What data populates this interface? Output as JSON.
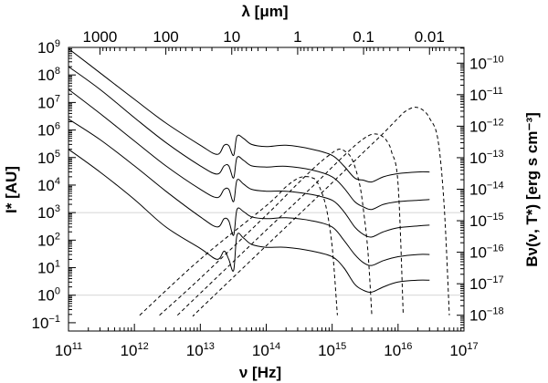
{
  "chart_data": {
    "type": "line",
    "xlabel": "ν [Hz]",
    "ylabel_left": "I* [AU]",
    "ylabel_right": "Bν(ν, T*) [erg s cm⁻³]",
    "top_xlabel": "λ [μm]",
    "x_scale": "log",
    "y_scale": "log",
    "xlim": [
      100000000000.0,
      1e+17
    ],
    "ylim_left": [
      0.05,
      1000000000.0
    ],
    "ylim_right": [
      3.16e-19,
      3.16e-10
    ],
    "grid": "horizontal lines at I* = 1 and I* = 1000",
    "x_ticks": [
      {
        "base": "10",
        "exp": "11",
        "value": 100000000000.0
      },
      {
        "base": "10",
        "exp": "12",
        "value": 1000000000000.0
      },
      {
        "base": "10",
        "exp": "13",
        "value": 10000000000000.0
      },
      {
        "base": "10",
        "exp": "14",
        "value": 100000000000000.0
      },
      {
        "base": "10",
        "exp": "15",
        "value": 1000000000000000.0
      },
      {
        "base": "10",
        "exp": "16",
        "value": 1e+16
      },
      {
        "base": "10",
        "exp": "17",
        "value": 1e+17
      }
    ],
    "top_ticks": [
      {
        "label": "1000",
        "lambda_um": 1000
      },
      {
        "label": "100",
        "lambda_um": 100
      },
      {
        "label": "10",
        "lambda_um": 10
      },
      {
        "label": "1",
        "lambda_um": 1
      },
      {
        "label": "0.1",
        "lambda_um": 0.1
      },
      {
        "label": "0.01",
        "lambda_um": 0.01
      }
    ],
    "left_ticks": [
      {
        "base": "10",
        "exp": "9",
        "value": 1000000000.0
      },
      {
        "base": "10",
        "exp": "8",
        "value": 100000000.0
      },
      {
        "base": "10",
        "exp": "7",
        "value": 10000000.0
      },
      {
        "base": "10",
        "exp": "6",
        "value": 1000000.0
      },
      {
        "base": "10",
        "exp": "5",
        "value": 100000.0
      },
      {
        "base": "10",
        "exp": "4",
        "value": 10000.0
      },
      {
        "base": "10",
        "exp": "3",
        "value": 1000.0
      },
      {
        "base": "10",
        "exp": "2",
        "value": 100.0
      },
      {
        "base": "10",
        "exp": "1",
        "value": 10.0
      },
      {
        "base": "10",
        "exp": "0",
        "value": 1.0
      },
      {
        "base": "10",
        "exp": "−1",
        "value": 0.1
      }
    ],
    "right_ticks": [
      {
        "base": "10",
        "exp": "−10",
        "value": 1e-10
      },
      {
        "base": "10",
        "exp": "−11",
        "value": 1e-11
      },
      {
        "base": "10",
        "exp": "−12",
        "value": 1e-12
      },
      {
        "base": "10",
        "exp": "−13",
        "value": 1e-13
      },
      {
        "base": "10",
        "exp": "−14",
        "value": 1e-14
      },
      {
        "base": "10",
        "exp": "−15",
        "value": 1e-15
      },
      {
        "base": "10",
        "exp": "−16",
        "value": 1e-16
      },
      {
        "base": "10",
        "exp": "−17",
        "value": 1e-17
      },
      {
        "base": "10",
        "exp": "−18",
        "value": 1e-18
      }
    ],
    "series": [
      {
        "style": "solid",
        "axis": "left",
        "x": [
          100000000000.0,
          300000000000.0,
          1000000000000.0,
          3000000000000.0,
          10000000000000.0,
          18000000000000.0,
          23000000000000.0,
          27000000000000.0,
          32000000000000.0,
          36000000000000.0,
          45000000000000.0,
          60000000000000.0,
          100000000000000.0,
          200000000000000.0,
          500000000000000.0,
          1000000000000000.0,
          1500000000000000.0,
          2200000000000000.0,
          3000000000000000.0,
          4000000000000000.0,
          6000000000000000.0,
          1e+16,
          2e+16,
          3e+16
        ],
        "y": [
          900000000.0,
          120000000.0,
          13000000.0,
          1800000.0,
          280000.0,
          130000.0,
          280000.0,
          270000.0,
          120000.0,
          600000.0,
          500000.0,
          300000.0,
          250000.0,
          280000.0,
          200000.0,
          120000.0,
          50000.0,
          18000.0,
          15000.0,
          13000.0,
          20000.0,
          26000.0,
          30000.0,
          30000.0
        ]
      },
      {
        "style": "solid",
        "axis": "left",
        "x": [
          100000000000.0,
          300000000000.0,
          1000000000000.0,
          3000000000000.0,
          10000000000000.0,
          18000000000000.0,
          23000000000000.0,
          27000000000000.0,
          32000000000000.0,
          36000000000000.0,
          45000000000000.0,
          60000000000000.0,
          100000000000000.0,
          200000000000000.0,
          500000000000000.0,
          1000000000000000.0,
          1500000000000000.0,
          2200000000000000.0,
          3000000000000000.0,
          4000000000000000.0,
          6000000000000000.0,
          1e+16,
          2e+16,
          3e+16
        ],
        "y": [
          200000000.0,
          30000000.0,
          2800000.0,
          350000.0,
          50000.0,
          25000.0,
          50000.0,
          50000.0,
          18000.0,
          100000.0,
          80000.0,
          50000.0,
          45000.0,
          48000.0,
          35000.0,
          20000.0,
          8000.0,
          2500.0,
          1600.0,
          1300.0,
          2000.0,
          2500.0,
          2800.0,
          3000.0
        ]
      },
      {
        "style": "solid",
        "axis": "left",
        "x": [
          100000000000.0,
          300000000000.0,
          1000000000000.0,
          3000000000000.0,
          10000000000000.0,
          18000000000000.0,
          23000000000000.0,
          27000000000000.0,
          32000000000000.0,
          36000000000000.0,
          45000000000000.0,
          60000000000000.0,
          100000000000000.0,
          200000000000000.0,
          500000000000000.0,
          1000000000000000.0,
          1500000000000000.0,
          2200000000000000.0,
          3000000000000000.0,
          4000000000000000.0,
          6000000000000000.0,
          1e+16,
          2e+16,
          3e+16
        ],
        "y": [
          30000000.0,
          4000000.0,
          400000.0,
          50000.0,
          7000.0,
          3500.0,
          7000.0,
          7000.0,
          2500.0,
          15000.0,
          11000.0,
          7000.0,
          6000.0,
          6000.0,
          4500.0,
          2800.0,
          1100.0,
          300,
          160,
          130,
          200,
          280,
          330,
          350
        ]
      },
      {
        "style": "solid",
        "axis": "left",
        "x": [
          100000000000.0,
          300000000000.0,
          1000000000000.0,
          3000000000000.0,
          10000000000000.0,
          18000000000000.0,
          23000000000000.0,
          27000000000000.0,
          32000000000000.0,
          36000000000000.0,
          45000000000000.0,
          60000000000000.0,
          100000000000000.0,
          200000000000000.0,
          500000000000000.0,
          1000000000000000.0,
          1500000000000000.0,
          2200000000000000.0,
          3000000000000000.0,
          4000000000000000.0,
          6000000000000000.0,
          1e+16,
          2e+16,
          3e+16
        ],
        "y": [
          2500000.0,
          450000.0,
          50000.0,
          6000.0,
          700,
          300,
          600,
          500,
          150,
          1300.0,
          1100.0,
          700,
          600,
          650,
          500,
          300,
          100,
          30,
          15,
          12,
          18,
          25,
          30,
          30
        ]
      },
      {
        "style": "solid",
        "axis": "left",
        "x": [
          100000000000.0,
          300000000000.0,
          1000000000000.0,
          3000000000000.0,
          10000000000000.0,
          18000000000000.0,
          23000000000000.0,
          27000000000000.0,
          32000000000000.0,
          36000000000000.0,
          45000000000000.0,
          60000000000000.0,
          100000000000000.0,
          200000000000000.0,
          500000000000000.0,
          1000000000000000.0,
          1500000000000000.0,
          2200000000000000.0,
          3000000000000000.0,
          4000000000000000.0,
          6000000000000000.0,
          1e+16,
          2e+16,
          3e+16
        ],
        "y": [
          200000.0,
          30000.0,
          3000.0,
          300,
          50,
          20,
          40,
          20,
          8,
          150,
          120,
          70,
          55,
          55,
          40,
          25,
          10,
          2.5,
          1.5,
          1.3,
          2,
          3,
          3.5,
          3.5
        ]
      },
      {
        "style": "dashed",
        "axis": "right",
        "x": [
          1200000000000.0,
          10000000000000.0,
          100000000000000.0,
          200000000000000.0,
          300000000000000.0,
          400000000000000.0,
          500000000000000.0,
          600000000000000.0,
          800000000000000.0,
          1000000000000000.0,
          1200000000000000.0
        ],
        "y": [
          1e-18,
          6e-17,
          3e-15,
          1.2e-14,
          2.2e-14,
          2.5e-14,
          2.3e-14,
          1.6e-14,
          3e-15,
          1.5e-16,
          1e-18
        ]
      },
      {
        "style": "dashed",
        "axis": "right",
        "x": [
          2400000000000.0,
          10000000000000.0,
          100000000000000.0,
          300000000000000.0,
          600000000000000.0,
          900000000000000.0,
          1200000000000000.0,
          1500000000000000.0,
          2000000000000000.0,
          2600000000000000.0,
          3000000000000000.0,
          3500000000000000.0,
          4000000000000000.0
        ],
        "y": [
          1e-18,
          1.5e-17,
          1.5e-15,
          1.5e-14,
          6e-14,
          1.2e-13,
          1.8e-13,
          1.7e-13,
          9e-14,
          1.5e-14,
          2e-15,
          1e-16,
          1e-18
        ]
      },
      {
        "style": "dashed",
        "axis": "right",
        "x": [
          4500000000000.0,
          10000000000000.0,
          100000000000000.0,
          500000000000000.0,
          1000000000000000.0,
          2000000000000000.0,
          3000000000000000.0,
          4000000000000000.0,
          5000000000000000.0,
          6000000000000000.0,
          7000000000000000.0,
          8000000000000000.0,
          1e+16,
          1.2e+16
        ],
        "y": [
          1e-18,
          5e-18,
          5e-16,
          1.2e-14,
          5e-14,
          2e-13,
          4e-13,
          5.5e-13,
          5.5e-13,
          4.5e-13,
          3e-13,
          1.5e-13,
          1.5e-14,
          1e-18
        ]
      },
      {
        "style": "dashed",
        "axis": "right",
        "x": [
          8000000000000.0,
          10000000000000.0,
          100000000000000.0,
          1000000000000000.0,
          3000000000000000.0,
          6000000000000000.0,
          1e+16,
          1.3e+16,
          1.8e+16,
          2.4e+16,
          3e+16,
          4e+16,
          5e+16,
          6e+16
        ],
        "y": [
          1e-18,
          1.6e-18,
          1.6e-16,
          1.6e-14,
          1.5e-13,
          6e-13,
          1.8e-12,
          3e-12,
          4e-12,
          3.2e-12,
          1.8e-12,
          4e-13,
          3e-15,
          1e-18
        ]
      }
    ]
  }
}
